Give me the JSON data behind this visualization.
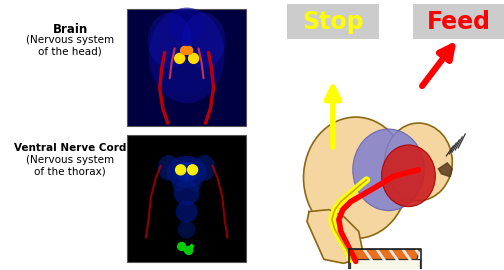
{
  "bg_color": "#ffffff",
  "label1": "Brain",
  "label1b": "(Nervous system",
  "label1c": "of the head)",
  "label2": "Ventral Nerve Cord",
  "label2b": "(Nervous system",
  "label2c": "of the thorax)",
  "stop_text": "Stop",
  "feed_text": "Feed",
  "stop_color": "#ffff00",
  "feed_color": "#ff0000",
  "stop_box_color": "#cccccc",
  "feed_box_color": "#cccccc",
  "fly_body_color": "#f5d5a0",
  "fly_brain_outer": "#8080d0",
  "fly_brain_inner": "#cc2222",
  "arrow_stop_color": "#ffff00",
  "arrow_feed_color": "#ff0000",
  "sushi_color": "#e87020",
  "text_fontsize": 7.5
}
